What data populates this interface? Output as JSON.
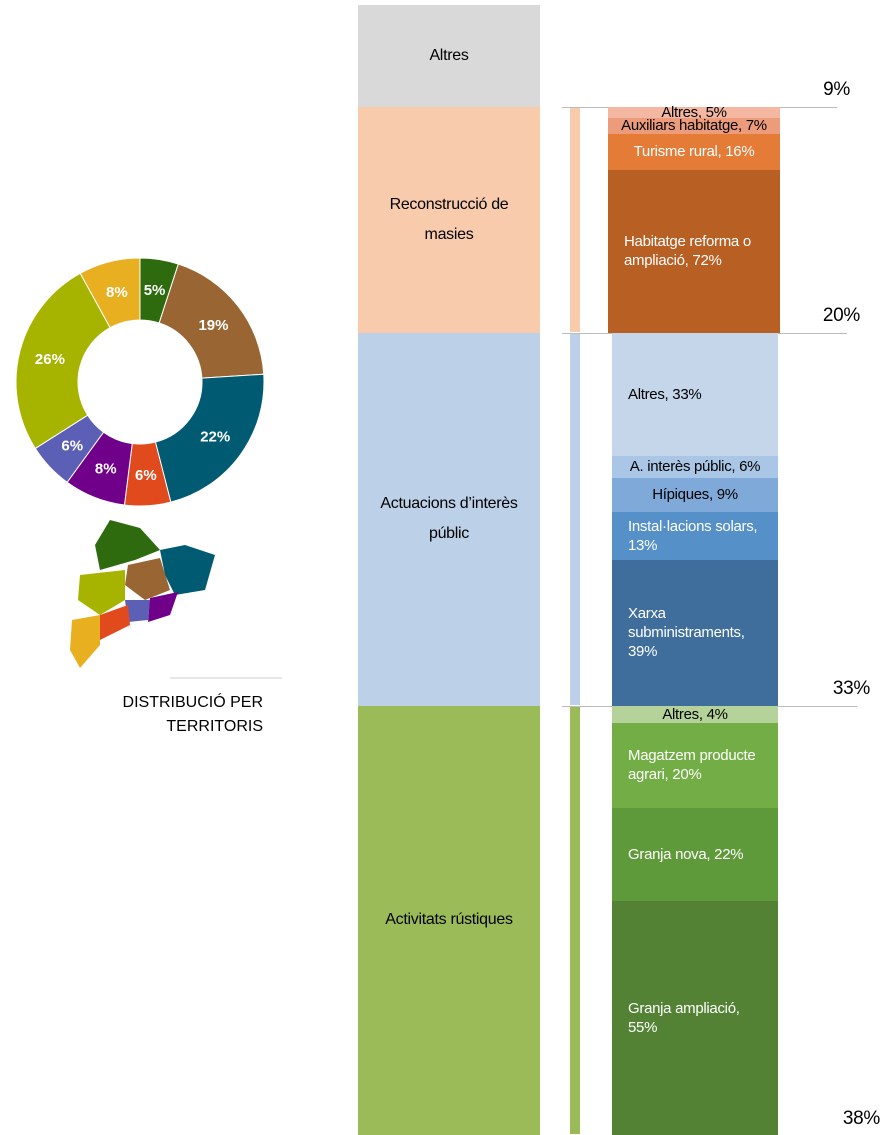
{
  "chart_data": [
    {
      "type": "pie",
      "title": "DISTRIBUCIÓ PER TERRITORIS",
      "values": [
        5,
        19,
        22,
        6,
        8,
        6,
        26,
        8
      ],
      "value_labels": [
        "5%",
        "19%",
        "22%",
        "6%",
        "8%",
        "6%",
        "26%",
        "8%"
      ],
      "colors": [
        "#2e6b0e",
        "#996633",
        "#005b72",
        "#e04a1c",
        "#70008a",
        "#5b5fb5",
        "#a6b400",
        "#e8b020"
      ]
    },
    {
      "type": "stacked-column",
      "categories": [
        "Altres",
        "Reconstrucció de masies",
        "Actuacions d’interès públic",
        "Activitats rústiques"
      ],
      "values": [
        9,
        20,
        33,
        38
      ],
      "value_labels": [
        "9%",
        "20%",
        "33%",
        "38%"
      ],
      "colors": [
        "#d9d9d9",
        "#f8cbad",
        "#bcd0e8",
        "#9bbb59"
      ]
    },
    {
      "type": "stacked-column",
      "values": [
        5,
        7,
        16,
        72
      ],
      "value_labels": [
        "Altres, 5%",
        "Auxiliars habitatge, 7%",
        "Turisme rural, 16%",
        "Habitatge reforma o ampliació, 72%"
      ],
      "colors": [
        "#f4b8a2",
        "#ec9b7b",
        "#e47b37",
        "#b85f24"
      ]
    },
    {
      "type": "stacked-column",
      "values": [
        33,
        6,
        9,
        13,
        39
      ],
      "value_labels": [
        "Altres, 33%",
        "A. interès públic, 6%",
        "Hípiques, 9%",
        "Instal·lacions solars, 13%",
        "Xarxa subministraments, 39%"
      ],
      "colors": [
        "#c5d5ea",
        "#a9c6e6",
        "#7fa9d9",
        "#5590c8",
        "#3f6e9d"
      ]
    },
    {
      "type": "stacked-column",
      "values": [
        4,
        20,
        22,
        55
      ],
      "value_labels": [
        "Altres, 4%",
        "Magatzem producte agrari, 20%",
        "Granja nova, 22%",
        "Granja ampliació, 55%"
      ],
      "colors": [
        "#b5d29b",
        "#72ad45",
        "#5f9a3a",
        "#548235"
      ]
    }
  ]
}
